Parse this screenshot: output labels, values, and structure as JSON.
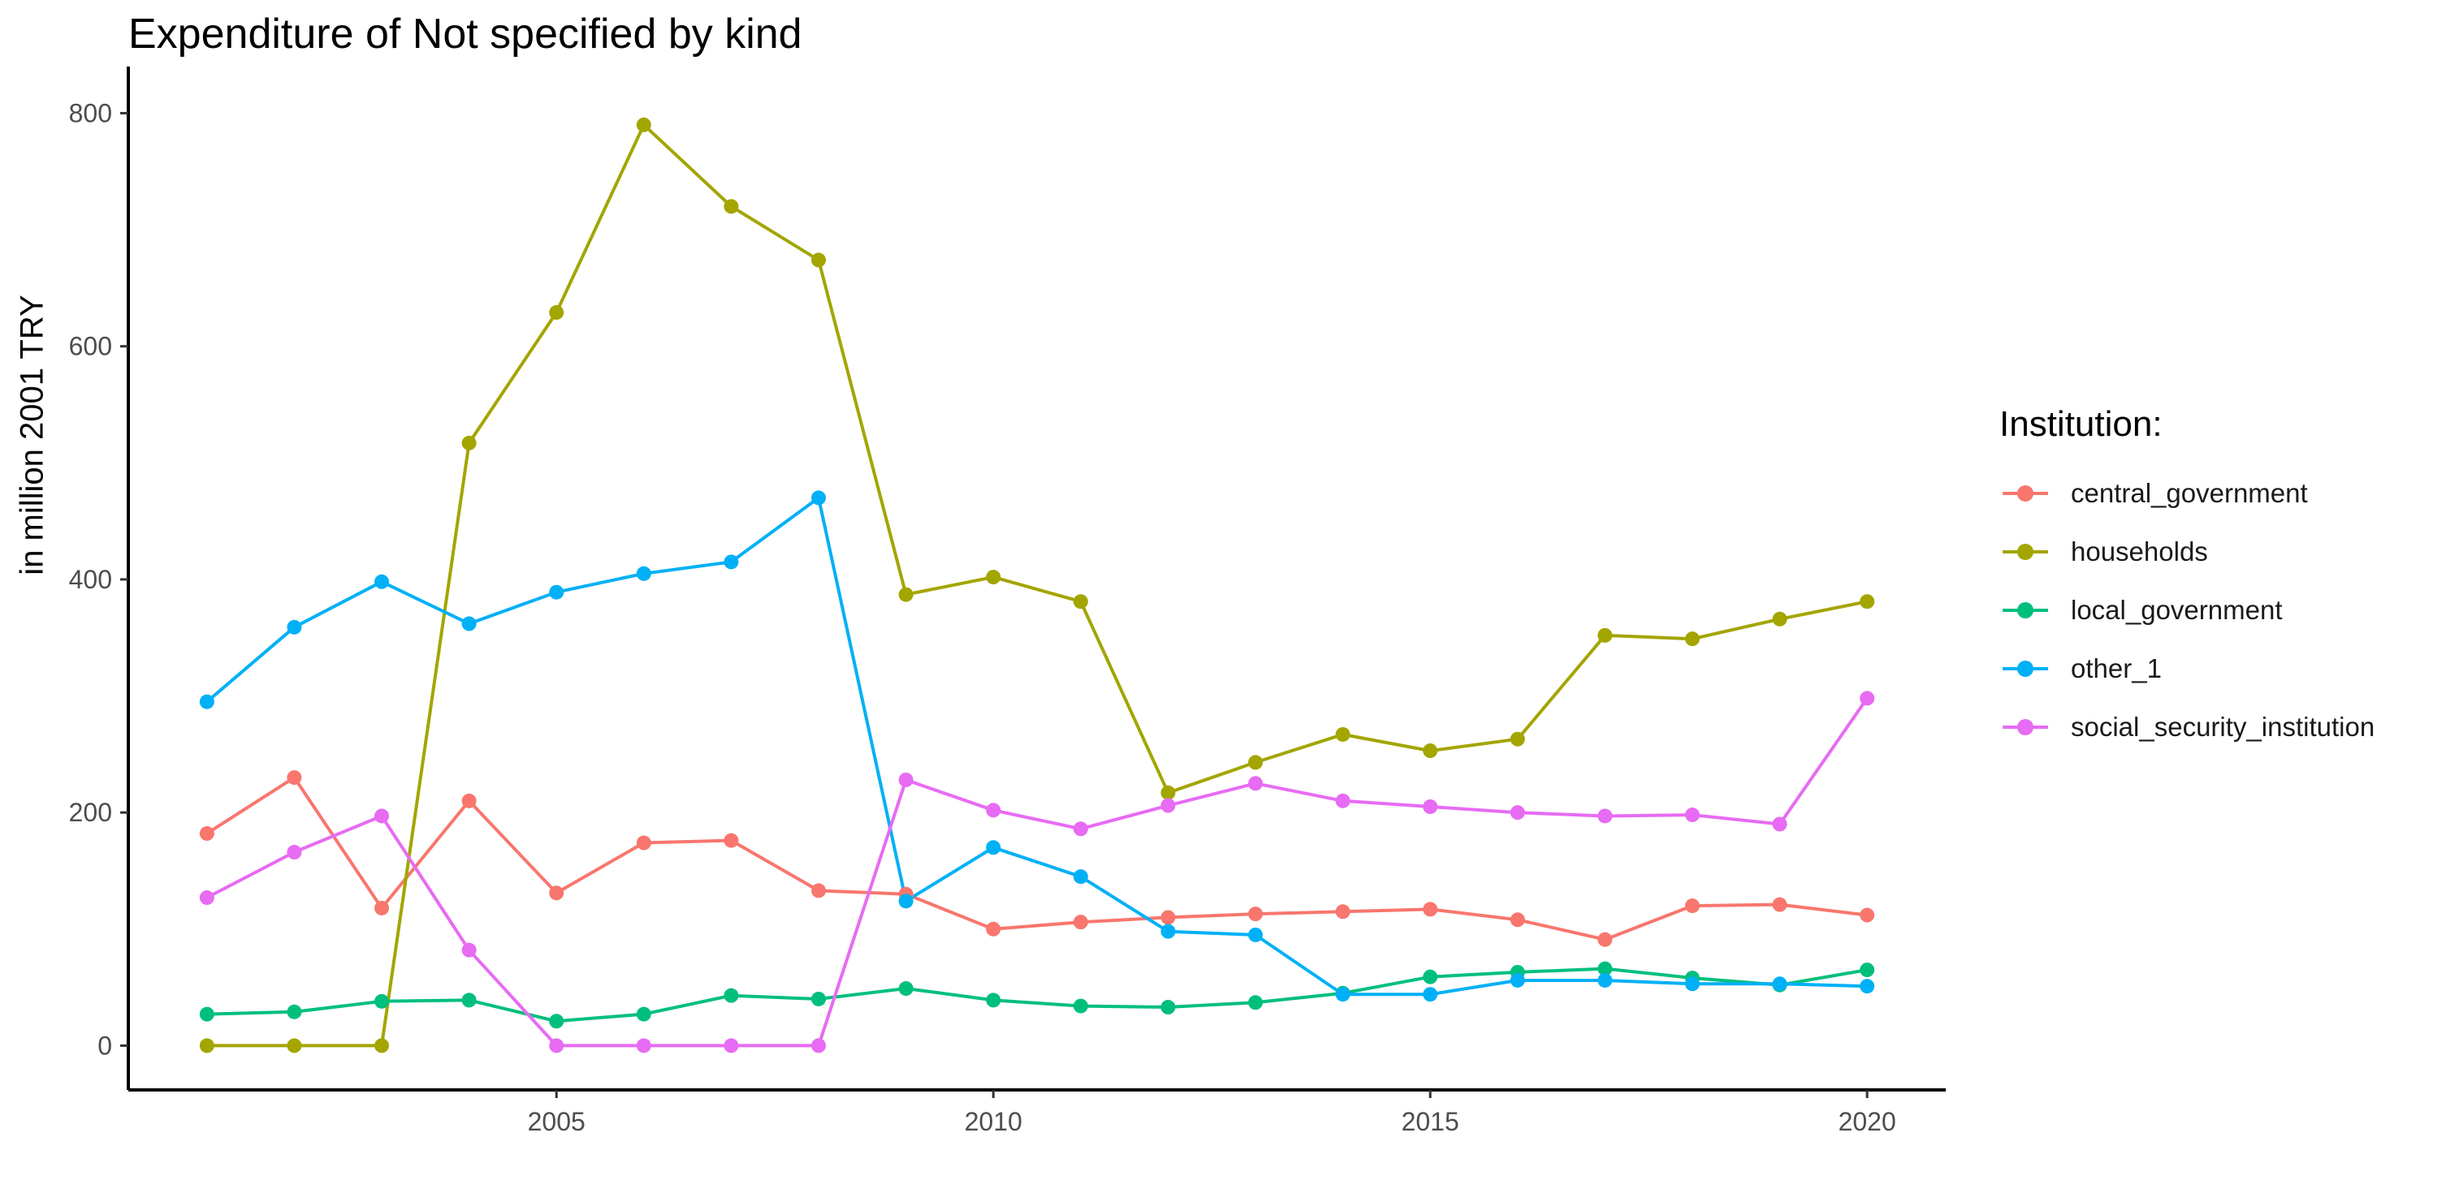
{
  "chart_data": {
    "type": "line",
    "title": "Expenditure of Not specified by kind",
    "xlabel": "",
    "ylabel": "in million 2001 TRY",
    "legend_title": "Institution:",
    "legend_position": "right",
    "grid": false,
    "x": [
      2001,
      2002,
      2003,
      2004,
      2005,
      2006,
      2007,
      2008,
      2009,
      2010,
      2011,
      2012,
      2013,
      2014,
      2015,
      2016,
      2017,
      2018,
      2019,
      2020
    ],
    "x_ticks": [
      2005,
      2010,
      2015,
      2020
    ],
    "y_ticks": [
      0,
      200,
      400,
      600,
      800
    ],
    "xlim": [
      2000.1,
      2020.9
    ],
    "ylim": [
      -38,
      840
    ],
    "series": [
      {
        "name": "central_government",
        "color": "#F8766D",
        "values": [
          182,
          230,
          118,
          210,
          131,
          174,
          176,
          133,
          130,
          100,
          106,
          110,
          113,
          115,
          117,
          108,
          91,
          120,
          121,
          112
        ]
      },
      {
        "name": "households",
        "color": "#A3A500",
        "values": [
          0,
          0,
          0,
          517,
          629,
          790,
          720,
          674,
          387,
          402,
          381,
          217,
          243,
          267,
          253,
          263,
          352,
          349,
          366,
          381
        ]
      },
      {
        "name": "local_government",
        "color": "#00BF7D",
        "values": [
          27,
          29,
          38,
          39,
          21,
          27,
          43,
          40,
          49,
          39,
          34,
          33,
          37,
          45,
          59,
          63,
          66,
          58,
          52,
          65
        ]
      },
      {
        "name": "other_1",
        "color": "#00B0F6",
        "values": [
          295,
          359,
          398,
          362,
          389,
          405,
          415,
          470,
          124,
          170,
          145,
          98,
          95,
          44,
          44,
          56,
          56,
          53,
          53,
          51
        ]
      },
      {
        "name": "social_security_institution",
        "color": "#E76BF3",
        "values": [
          127,
          166,
          197,
          82,
          0,
          0,
          0,
          0,
          228,
          202,
          186,
          206,
          225,
          210,
          205,
          200,
          197,
          198,
          190,
          298
        ]
      }
    ]
  }
}
